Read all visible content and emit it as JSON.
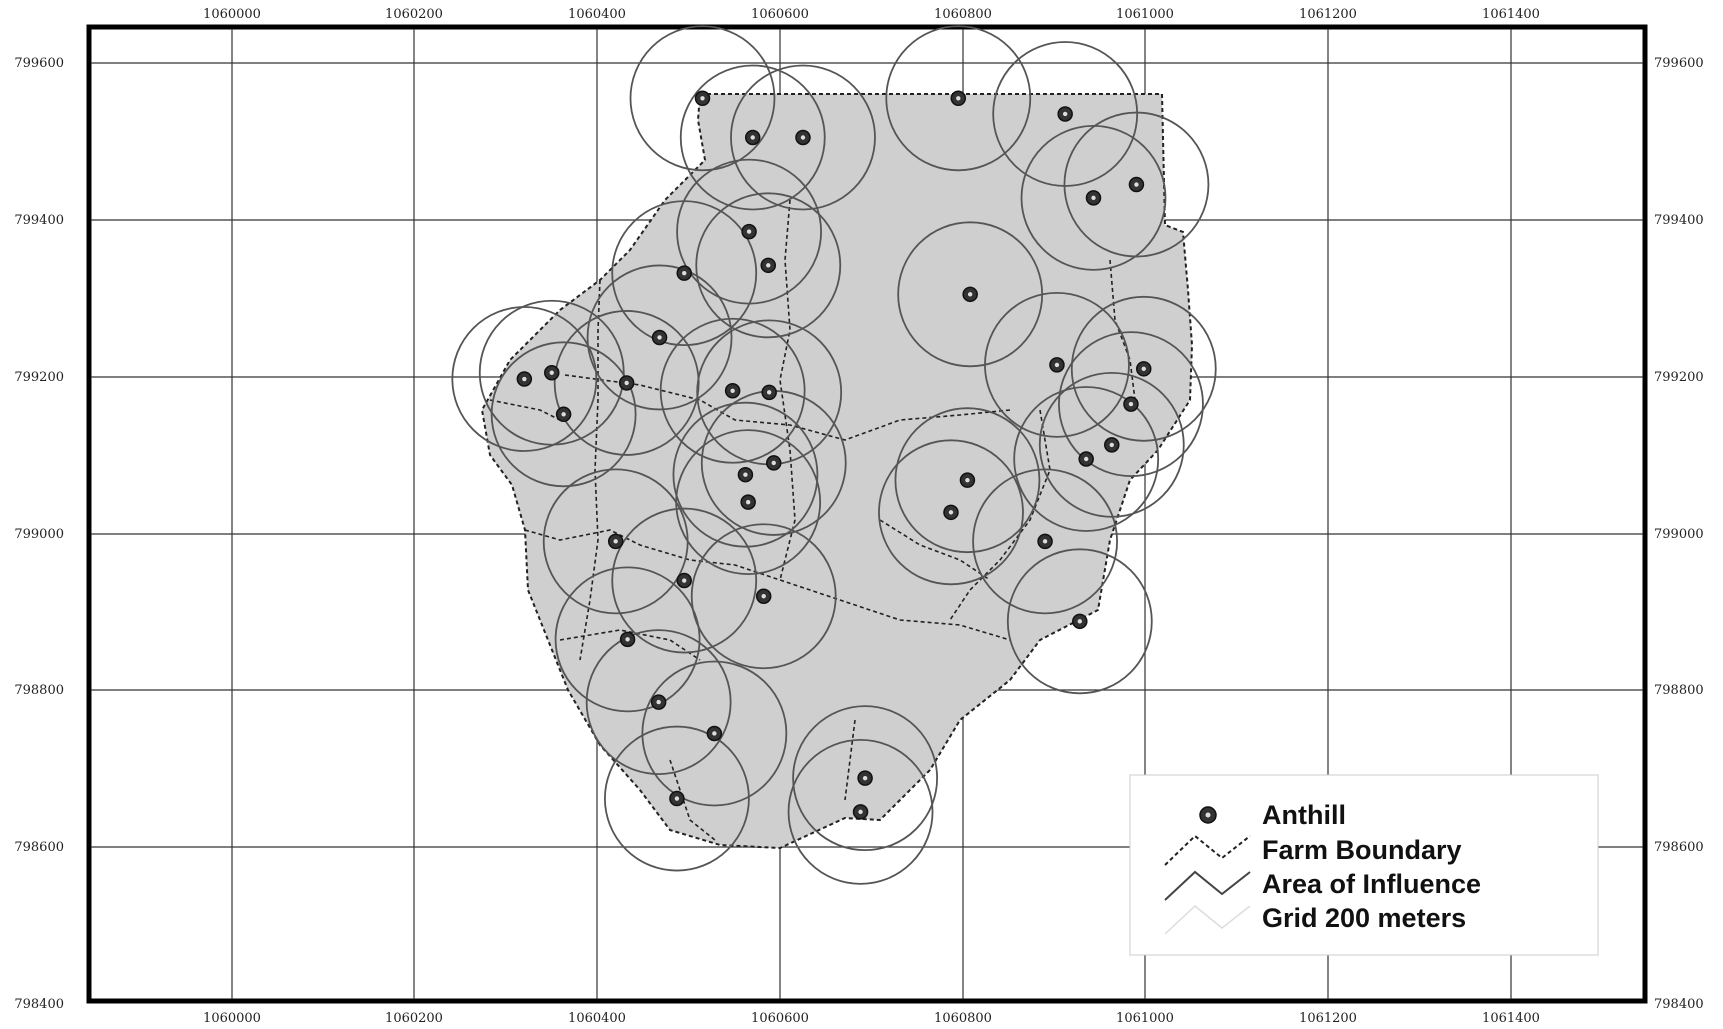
{
  "map": {
    "x_ticks": [
      "1060000",
      "1060200",
      "1060400",
      "1060600",
      "1060800",
      "1061000",
      "1061200",
      "1061400"
    ],
    "y_ticks": [
      "799600",
      "799400",
      "799200",
      "799000",
      "798800",
      "798600",
      "798400"
    ],
    "colors": {
      "frame": "#000000",
      "grid": "#333333",
      "farm_fill": "#cfcfcf",
      "farm_boundary": "#222222",
      "influence": "#555555",
      "anthill": "#333333"
    }
  },
  "legend": {
    "placement": "bottom-right",
    "items": [
      {
        "key": "anthill",
        "label": "Anthill"
      },
      {
        "key": "boundary",
        "label": "Farm Boundary"
      },
      {
        "key": "influence",
        "label": "Area of Influence"
      },
      {
        "key": "grid",
        "label": "Grid 200 meters"
      }
    ]
  },
  "anthills": [
    {
      "x": 1060515,
      "y": 799555
    },
    {
      "x": 1060570,
      "y": 799505
    },
    {
      "x": 1060625,
      "y": 799505
    },
    {
      "x": 1060795,
      "y": 799555
    },
    {
      "x": 1060912,
      "y": 799535
    },
    {
      "x": 1060990,
      "y": 799445
    },
    {
      "x": 1060943,
      "y": 799428
    },
    {
      "x": 1060566,
      "y": 799385
    },
    {
      "x": 1060587,
      "y": 799342
    },
    {
      "x": 1060495,
      "y": 799332
    },
    {
      "x": 1060808,
      "y": 799305
    },
    {
      "x": 1060468,
      "y": 799250
    },
    {
      "x": 1060320,
      "y": 799197
    },
    {
      "x": 1060350,
      "y": 799205
    },
    {
      "x": 1060432,
      "y": 799192
    },
    {
      "x": 1060363,
      "y": 799152
    },
    {
      "x": 1060548,
      "y": 799182
    },
    {
      "x": 1060588,
      "y": 799180
    },
    {
      "x": 1060903,
      "y": 799215
    },
    {
      "x": 1060998,
      "y": 799210
    },
    {
      "x": 1060984,
      "y": 799165
    },
    {
      "x": 1060963,
      "y": 799113
    },
    {
      "x": 1060935,
      "y": 799095
    },
    {
      "x": 1060593,
      "y": 799090
    },
    {
      "x": 1060562,
      "y": 799075
    },
    {
      "x": 1060565,
      "y": 799040
    },
    {
      "x": 1060805,
      "y": 799068
    },
    {
      "x": 1060787,
      "y": 799027
    },
    {
      "x": 1060890,
      "y": 798990
    },
    {
      "x": 1060420,
      "y": 798990
    },
    {
      "x": 1060495,
      "y": 798940
    },
    {
      "x": 1060582,
      "y": 798920
    },
    {
      "x": 1060928,
      "y": 798888
    },
    {
      "x": 1060433,
      "y": 798865
    },
    {
      "x": 1060467,
      "y": 798785
    },
    {
      "x": 1060528,
      "y": 798745
    },
    {
      "x": 1060487,
      "y": 798662
    },
    {
      "x": 1060693,
      "y": 798688
    },
    {
      "x": 1060688,
      "y": 798645
    }
  ]
}
